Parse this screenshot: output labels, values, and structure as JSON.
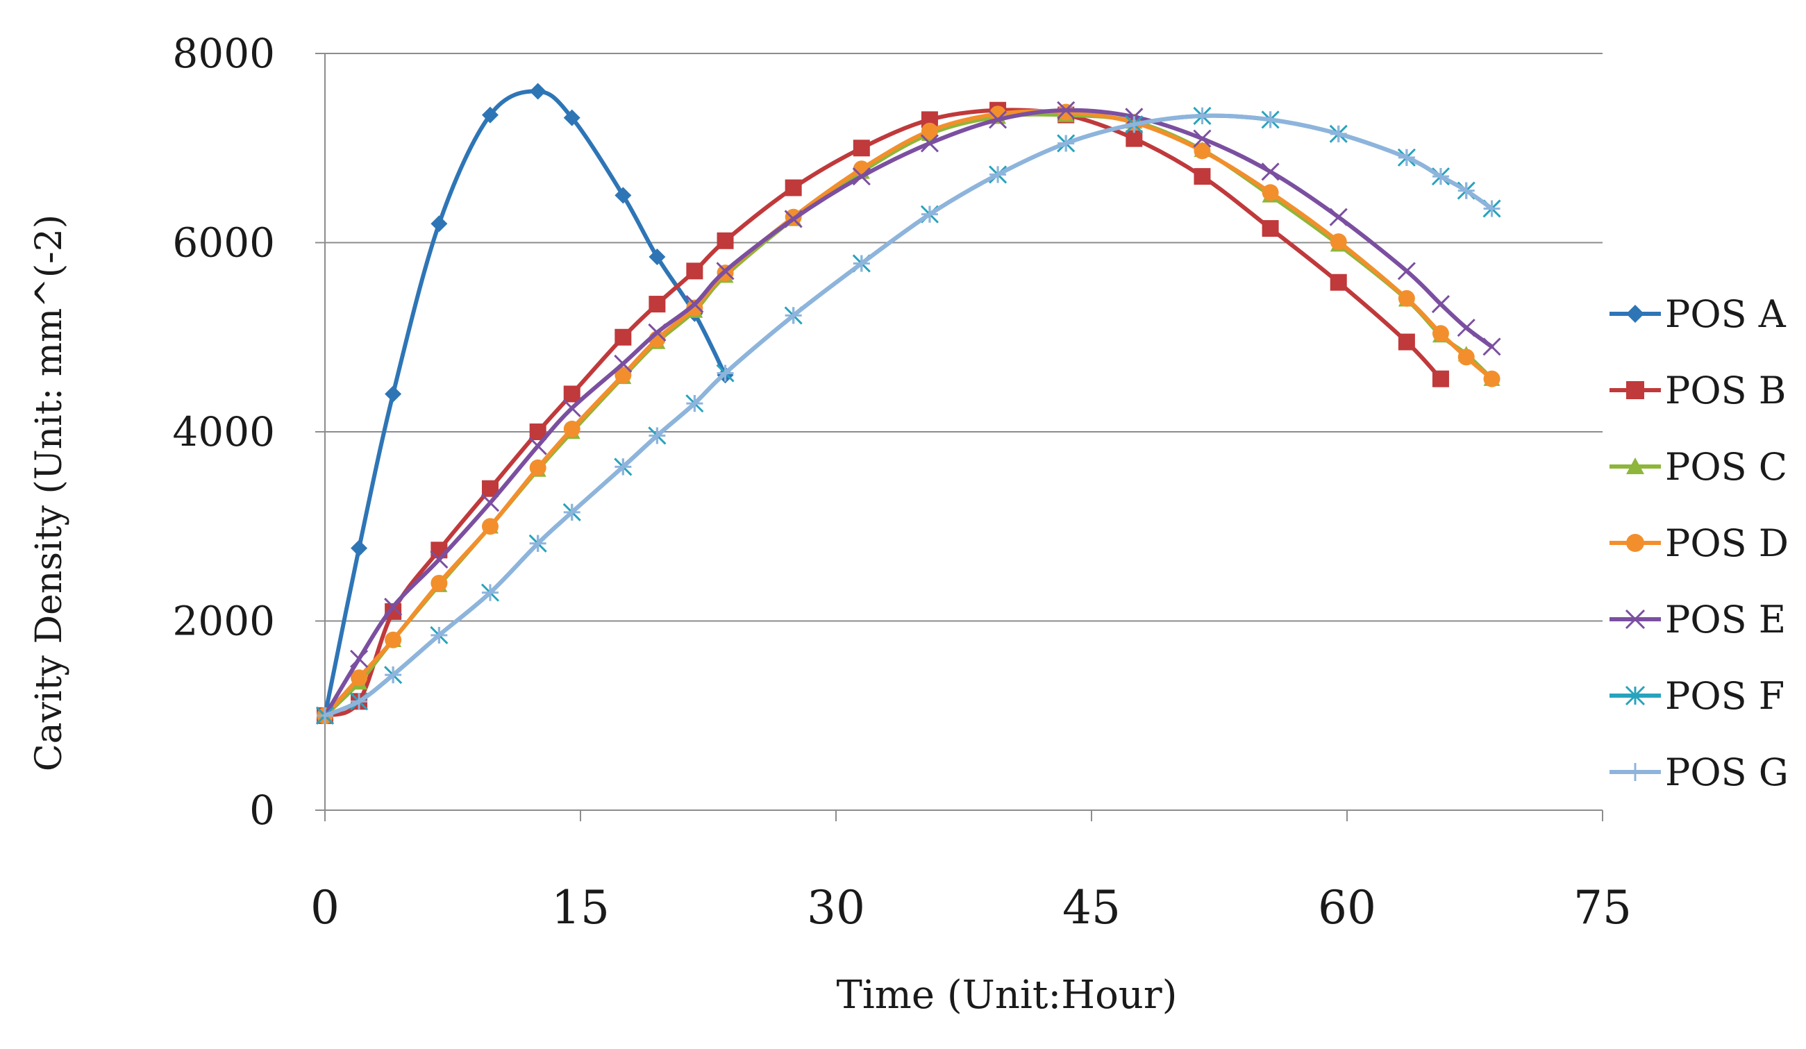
{
  "chart_data": {
    "type": "line",
    "title": "",
    "xlabel": "Time (Unit:Hour)",
    "ylabel": "Cavity Density (Unit: mm^(-2)",
    "xlim": [
      0,
      75
    ],
    "ylim": [
      0,
      8000
    ],
    "xticks": [
      0,
      15,
      30,
      45,
      60,
      75
    ],
    "yticks": [
      0,
      2000,
      4000,
      6000,
      8000
    ],
    "grid": "horizontal",
    "legend_position": "right",
    "series": [
      {
        "name": "POS A",
        "label": "POS A",
        "color": "#2e75b6",
        "marker": "diamond",
        "points": [
          [
            0,
            1000
          ],
          [
            2,
            2770
          ],
          [
            4,
            4400
          ],
          [
            6.7,
            6200
          ],
          [
            9.7,
            7350
          ],
          [
            12.5,
            7600
          ],
          [
            14.5,
            7320
          ],
          [
            17.5,
            6500
          ],
          [
            19.5,
            5850
          ],
          [
            21.7,
            5250
          ],
          [
            23.5,
            4600
          ]
        ]
      },
      {
        "name": "POS B",
        "label": "POS B",
        "color": "#c0393b",
        "marker": "square",
        "points": [
          [
            0,
            1000
          ],
          [
            2,
            1150
          ],
          [
            4,
            2100
          ],
          [
            6.7,
            2750
          ],
          [
            9.7,
            3400
          ],
          [
            12.5,
            4000
          ],
          [
            14.5,
            4400
          ],
          [
            17.5,
            5000
          ],
          [
            19.5,
            5350
          ],
          [
            21.7,
            5700
          ],
          [
            23.5,
            6020
          ],
          [
            27.5,
            6580
          ],
          [
            31.5,
            7000
          ],
          [
            35.5,
            7300
          ],
          [
            39.5,
            7400
          ],
          [
            43.5,
            7350
          ],
          [
            47.5,
            7100
          ],
          [
            51.5,
            6700
          ],
          [
            55.5,
            6150
          ],
          [
            59.5,
            5580
          ],
          [
            63.5,
            4950
          ],
          [
            65.5,
            4560
          ]
        ]
      },
      {
        "name": "POS C",
        "label": "POS C",
        "color": "#8db63a",
        "marker": "triangle",
        "points": [
          [
            0,
            1000
          ],
          [
            2,
            1350
          ],
          [
            4,
            1800
          ],
          [
            6.7,
            2380
          ],
          [
            9.7,
            3000
          ],
          [
            12.5,
            3600
          ],
          [
            14.5,
            4000
          ],
          [
            17.5,
            4580
          ],
          [
            19.5,
            4950
          ],
          [
            21.7,
            5280
          ],
          [
            23.5,
            5650
          ],
          [
            27.5,
            6250
          ],
          [
            31.5,
            6750
          ],
          [
            35.5,
            7150
          ],
          [
            39.5,
            7330
          ],
          [
            43.5,
            7350
          ],
          [
            47.5,
            7280
          ],
          [
            51.5,
            6980
          ],
          [
            55.5,
            6500
          ],
          [
            59.5,
            5980
          ],
          [
            63.5,
            5400
          ],
          [
            65.5,
            5020
          ],
          [
            67,
            4820
          ],
          [
            68.5,
            4560
          ]
        ]
      },
      {
        "name": "POS D",
        "label": "POS D",
        "color": "#f28f2c",
        "marker": "circle",
        "points": [
          [
            0,
            1000
          ],
          [
            2,
            1400
          ],
          [
            4,
            1800
          ],
          [
            6.7,
            2400
          ],
          [
            9.7,
            3000
          ],
          [
            12.5,
            3620
          ],
          [
            14.5,
            4030
          ],
          [
            17.5,
            4600
          ],
          [
            19.5,
            4980
          ],
          [
            21.7,
            5310
          ],
          [
            23.5,
            5680
          ],
          [
            27.5,
            6270
          ],
          [
            31.5,
            6780
          ],
          [
            35.5,
            7180
          ],
          [
            39.5,
            7360
          ],
          [
            43.5,
            7380
          ],
          [
            47.5,
            7270
          ],
          [
            51.5,
            6970
          ],
          [
            55.5,
            6530
          ],
          [
            59.5,
            6010
          ],
          [
            63.5,
            5410
          ],
          [
            65.5,
            5040
          ],
          [
            67,
            4790
          ],
          [
            68.5,
            4560
          ]
        ]
      },
      {
        "name": "POS E",
        "label": "POS E",
        "color": "#7b4fa0",
        "marker": "x",
        "points": [
          [
            0,
            1000
          ],
          [
            2,
            1600
          ],
          [
            4,
            2150
          ],
          [
            6.7,
            2650
          ],
          [
            9.7,
            3250
          ],
          [
            12.5,
            3850
          ],
          [
            14.5,
            4250
          ],
          [
            17.5,
            4720
          ],
          [
            19.5,
            5050
          ],
          [
            21.7,
            5350
          ],
          [
            23.5,
            5700
          ],
          [
            27.5,
            6250
          ],
          [
            31.5,
            6700
          ],
          [
            35.5,
            7050
          ],
          [
            39.5,
            7300
          ],
          [
            43.5,
            7400
          ],
          [
            47.5,
            7330
          ],
          [
            51.5,
            7100
          ],
          [
            55.5,
            6750
          ],
          [
            59.5,
            6270
          ],
          [
            63.5,
            5700
          ],
          [
            65.5,
            5350
          ],
          [
            67,
            5100
          ],
          [
            68.5,
            4900
          ]
        ]
      },
      {
        "name": "POS F",
        "label": "POS F",
        "color": "#27a3bd",
        "marker": "asterisk",
        "points": [
          [
            0,
            1000
          ],
          [
            2,
            1150
          ],
          [
            4,
            1430
          ],
          [
            6.7,
            1850
          ],
          [
            9.7,
            2300
          ],
          [
            12.5,
            2820
          ],
          [
            14.5,
            3150
          ],
          [
            17.5,
            3630
          ],
          [
            19.5,
            3960
          ],
          [
            21.7,
            4300
          ],
          [
            23.5,
            4620
          ],
          [
            27.5,
            5230
          ],
          [
            31.5,
            5780
          ],
          [
            35.5,
            6300
          ],
          [
            39.5,
            6720
          ],
          [
            43.5,
            7050
          ],
          [
            47.5,
            7250
          ],
          [
            51.5,
            7340
          ],
          [
            55.5,
            7300
          ],
          [
            59.5,
            7150
          ],
          [
            63.5,
            6900
          ],
          [
            65.5,
            6700
          ],
          [
            67,
            6550
          ],
          [
            68.5,
            6360
          ]
        ]
      },
      {
        "name": "POS G",
        "label": "POS G",
        "color": "#8eb4dc",
        "marker": "plus",
        "points": [
          [
            0,
            1000
          ],
          [
            2,
            1150
          ],
          [
            4,
            1430
          ],
          [
            6.7,
            1850
          ],
          [
            9.7,
            2300
          ],
          [
            12.5,
            2820
          ],
          [
            14.5,
            3150
          ],
          [
            17.5,
            3630
          ],
          [
            19.5,
            3960
          ],
          [
            21.7,
            4300
          ],
          [
            23.5,
            4620
          ],
          [
            27.5,
            5230
          ],
          [
            31.5,
            5780
          ],
          [
            35.5,
            6300
          ],
          [
            39.5,
            6720
          ],
          [
            43.5,
            7050
          ],
          [
            47.5,
            7250
          ],
          [
            51.5,
            7340
          ],
          [
            55.5,
            7300
          ],
          [
            59.5,
            7150
          ],
          [
            63.5,
            6900
          ],
          [
            65.5,
            6700
          ],
          [
            67,
            6550
          ],
          [
            68.5,
            6360
          ]
        ]
      }
    ]
  }
}
